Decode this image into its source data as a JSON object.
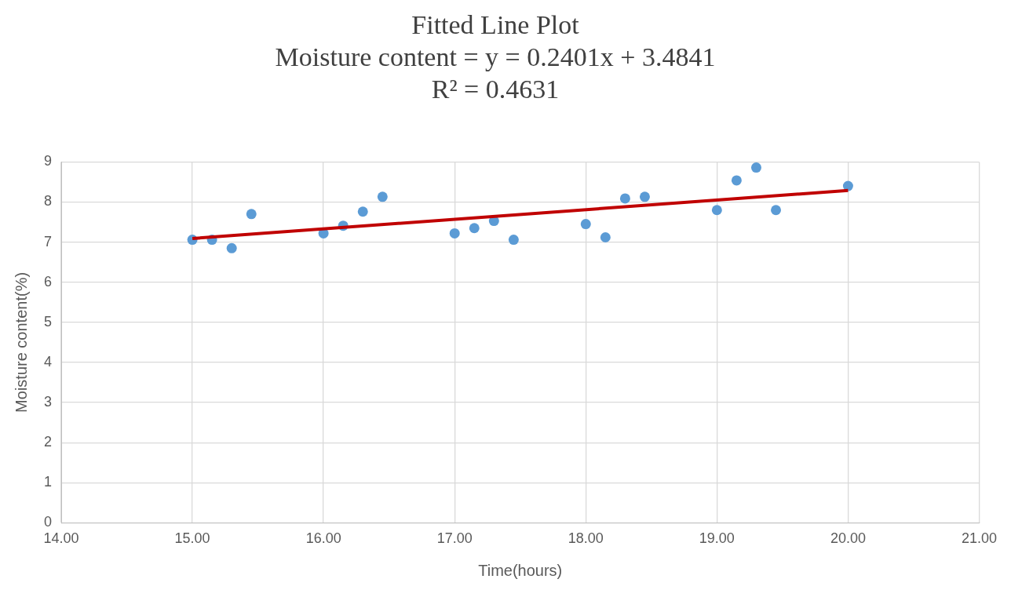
{
  "chart_data": {
    "type": "scatter",
    "title": "Fitted Line Plot",
    "subtitle": "Moisture content = y = 0.2401x + 3.4841\nR² = 0.4631",
    "xlabel": "Time(hours)",
    "ylabel": "Moisture content(%)",
    "xlim": [
      14,
      21
    ],
    "xticks": [
      {
        "value": 14,
        "label": "14.00"
      },
      {
        "value": 15,
        "label": "15.00"
      },
      {
        "value": 16,
        "label": "16.00"
      },
      {
        "value": 17,
        "label": "17.00"
      },
      {
        "value": 18,
        "label": "18.00"
      },
      {
        "value": 19,
        "label": "19.00"
      },
      {
        "value": 20,
        "label": "20.00"
      },
      {
        "value": 21,
        "label": "21.00"
      }
    ],
    "ylim": [
      0,
      9
    ],
    "yticks": [
      0,
      1,
      2,
      3,
      4,
      5,
      6,
      7,
      8,
      9
    ],
    "grid": true,
    "legend": false,
    "marker": "circle",
    "series": [
      {
        "color": "#5b9bd5",
        "x": [
          15,
          15.15,
          15.3,
          15.45,
          16,
          16.15,
          16.3,
          16.45,
          17,
          17.15,
          17.3,
          17.45,
          18,
          18.15,
          18.3,
          18.45,
          19,
          19.15,
          19.3,
          19.45,
          20
        ],
        "values": [
          7.06,
          7.06,
          6.85,
          7.7,
          7.22,
          7.41,
          7.76,
          8.13,
          7.22,
          7.35,
          7.53,
          7.06,
          7.45,
          7.12,
          8.09,
          8.13,
          7.8,
          8.54,
          8.86,
          7.8,
          8.4
        ]
      },
      {
        "type": "line",
        "color": "#c00000",
        "marker": "none",
        "x": [
          15,
          20
        ],
        "values": [
          7.09,
          8.29
        ]
      }
    ]
  }
}
